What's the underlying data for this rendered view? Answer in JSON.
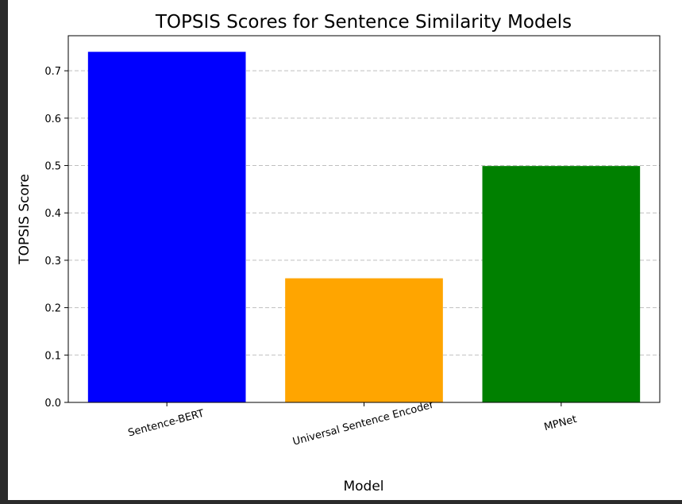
{
  "chart_data": {
    "type": "bar",
    "title": "TOPSIS Scores for Sentence Similarity Models",
    "xlabel": "Model",
    "ylabel": "TOPSIS Score",
    "categories": [
      "Sentence-BERT",
      "Universal Sentence Encoder",
      "MPNet"
    ],
    "values": [
      0.74,
      0.262,
      0.499
    ],
    "colors": [
      "#0000ff",
      "#ffa500",
      "#008000"
    ],
    "ylim": [
      0,
      0.774
    ],
    "yticks": [
      0.0,
      0.1,
      0.2,
      0.3,
      0.4,
      0.5,
      0.6,
      0.7
    ],
    "ytick_labels": [
      "0.0",
      "0.1",
      "0.2",
      "0.3",
      "0.4",
      "0.5",
      "0.6",
      "0.7"
    ],
    "grid": "y-dashed",
    "xtick_rotation": "15deg"
  }
}
